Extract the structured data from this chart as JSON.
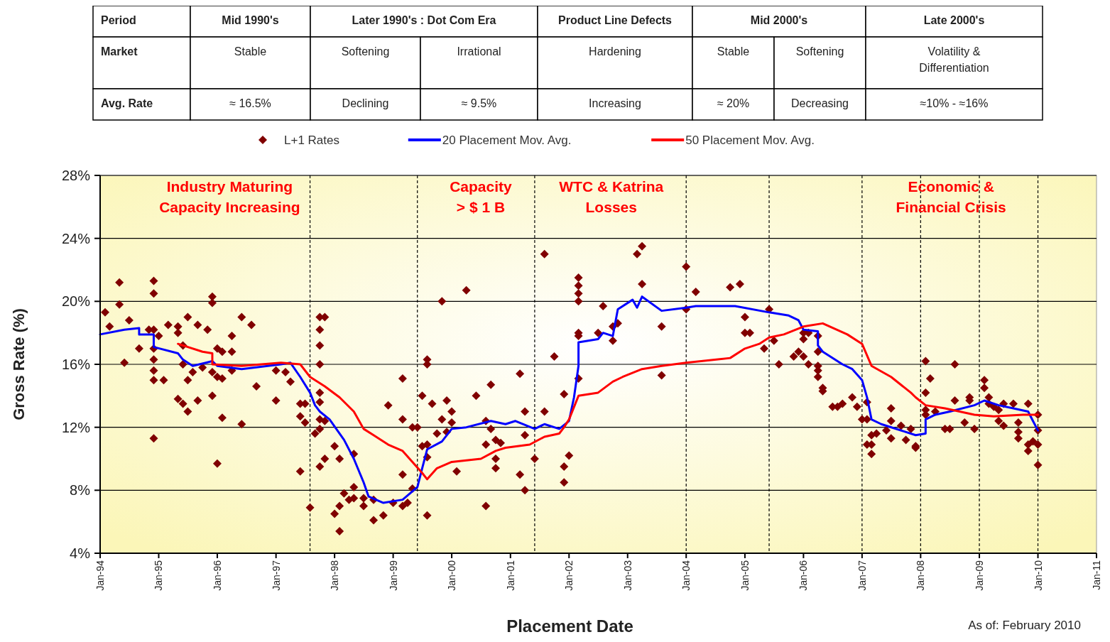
{
  "chart_data": {
    "type": "line",
    "xlabel": "Placement Date",
    "ylabel": "Gross Rate (%)",
    "xlim": [
      "1994-01",
      "2011-01"
    ],
    "ylim": [
      4,
      28
    ],
    "xticks": [
      {
        "value": "1994-01",
        "label": "Jan-94"
      },
      {
        "value": "1995-01",
        "label": "Jan-95"
      },
      {
        "value": "1996-01",
        "label": "Jan-96"
      },
      {
        "value": "1997-01",
        "label": "Jan-97"
      },
      {
        "value": "1998-01",
        "label": "Jan-98"
      },
      {
        "value": "1999-01",
        "label": "Jan-99"
      },
      {
        "value": "2000-01",
        "label": "Jan-00"
      },
      {
        "value": "2001-01",
        "label": "Jan-01"
      },
      {
        "value": "2002-01",
        "label": "Jan-02"
      },
      {
        "value": "2003-01",
        "label": "Jan-03"
      },
      {
        "value": "2004-01",
        "label": "Jan-04"
      },
      {
        "value": "2005-01",
        "label": "Jan-05"
      },
      {
        "value": "2006-01",
        "label": "Jan-06"
      },
      {
        "value": "2007-01",
        "label": "Jan-07"
      },
      {
        "value": "2008-01",
        "label": "Jan-08"
      },
      {
        "value": "2009-01",
        "label": "Jan-09"
      },
      {
        "value": "2010-01",
        "label": "Jan-10"
      },
      {
        "value": "2011-01",
        "label": "Jan-11"
      }
    ],
    "yticks": [
      {
        "value": 4,
        "label": "4%"
      },
      {
        "value": 8,
        "label": "8%"
      },
      {
        "value": 12,
        "label": "12%"
      },
      {
        "value": 16,
        "label": "16%"
      },
      {
        "value": 20,
        "label": "20%"
      },
      {
        "value": 24,
        "label": "24%"
      },
      {
        "value": 28,
        "label": "28%"
      }
    ],
    "grid": "y",
    "legend": "top",
    "series": [
      {
        "name": "L+1 Rates",
        "type": "scatter",
        "marker": "diamond",
        "color": "#800000",
        "x": [
          "1994-02",
          "1994-03",
          "1994-05",
          "1994-05",
          "1994-07",
          "1994-06",
          "1994-09",
          "1994-12",
          "1994-12",
          "1994-11",
          "1994-12",
          "1995-01",
          "1994-12",
          "1994-12",
          "1994-12",
          "1994-12",
          "1995-02",
          "1994-12",
          "1995-03",
          "1995-05",
          "1995-05",
          "1995-07",
          "1995-06",
          "1995-06",
          "1995-08",
          "1995-07",
          "1995-05",
          "1995-06",
          "1995-07",
          "1995-09",
          "1995-11",
          "1995-12",
          "1995-12",
          "1996-01",
          "1996-02",
          "1995-10",
          "1995-12",
          "1996-01",
          "1996-02",
          "1995-09",
          "1995-12",
          "1996-02",
          "1996-01",
          "1996-04",
          "1996-04",
          "1996-04",
          "1996-06",
          "1996-08",
          "1996-06",
          "1996-09",
          "1997-01",
          "1997-03",
          "1997-04",
          "1997-01",
          "1997-06",
          "1997-07",
          "1997-06",
          "1997-07",
          "1997-09",
          "1997-06",
          "1997-08",
          "1997-10",
          "1997-11",
          "1997-10",
          "1997-10",
          "1997-10",
          "1997-10",
          "1997-10",
          "1997-10",
          "1997-11",
          "1997-10",
          "1998-01",
          "1997-11",
          "1997-10",
          "1998-02",
          "1998-03",
          "1998-02",
          "1998-01",
          "1998-02",
          "1998-05",
          "1998-05",
          "1998-04",
          "1998-05",
          "1998-07",
          "1998-07",
          "1998-09",
          "1998-09",
          "1998-11",
          "1999-01",
          "1999-03",
          "1999-04",
          "1998-12",
          "1999-03",
          "1999-03",
          "1999-03",
          "1999-05",
          "1999-05",
          "1999-06",
          "1999-07",
          "1999-08",
          "1999-08",
          "1999-07",
          "1999-08",
          "1999-08",
          "1999-08",
          "1999-09",
          "1999-10",
          "1999-11",
          "1999-12",
          "2000-01",
          "1999-11",
          "2000-01",
          "1999-12",
          "2000-02",
          "2000-04",
          "2000-06",
          "2000-08",
          "2000-08",
          "2000-08",
          "2000-09",
          "2000-09",
          "2000-10",
          "2000-11",
          "2000-10",
          "2000-10",
          "2001-03",
          "2001-04",
          "2001-04",
          "2001-03",
          "2001-04",
          "2001-06",
          "2001-08",
          "2001-10",
          "2001-08",
          "2001-12",
          "2002-01",
          "2001-12",
          "2001-12",
          "2002-03",
          "2002-03",
          "2002-03",
          "2002-03",
          "2002-03",
          "2002-03",
          "2002-03",
          "2002-08",
          "2002-07",
          "2002-10",
          "2002-10",
          "2002-11",
          "2003-03",
          "2003-04",
          "2003-04",
          "2003-08",
          "2003-08",
          "2004-01",
          "2004-01",
          "2004-03",
          "2004-10",
          "2004-12",
          "2005-01",
          "2005-01",
          "2005-02",
          "2005-05",
          "2005-06",
          "2005-07",
          "2005-08",
          "2006-01",
          "2006-01",
          "2006-02",
          "2005-11",
          "2005-12",
          "2006-01",
          "2006-02",
          "2006-04",
          "2006-04",
          "2006-04",
          "2006-04",
          "2006-04",
          "2006-05",
          "2006-05",
          "2006-07",
          "2006-08",
          "2006-09",
          "2006-11",
          "2006-12",
          "2007-01",
          "2007-02",
          "2007-02",
          "2007-02",
          "2007-03",
          "2007-03",
          "2007-03",
          "2007-04",
          "2007-06",
          "2007-07",
          "2007-07",
          "2007-07",
          "2007-09",
          "2007-10",
          "2007-11",
          "2007-12",
          "2007-12",
          "2008-02",
          "2008-03",
          "2008-02",
          "2008-02",
          "2008-02",
          "2008-04",
          "2008-06",
          "2008-07",
          "2008-08",
          "2008-08",
          "2008-10",
          "2008-11",
          "2008-11",
          "2008-12",
          "2009-02",
          "2009-02",
          "2009-03",
          "2009-03",
          "2009-04",
          "2009-05",
          "2009-06",
          "2009-05",
          "2009-06",
          "2009-08",
          "2009-09",
          "2009-09",
          "2009-09",
          "2009-11",
          "2009-11",
          "2009-11",
          "2009-12",
          "2010-01",
          "2010-01",
          "2010-01",
          "2010-01"
        ],
        "values": [
          19.3,
          18.4,
          21.2,
          19.8,
          18.8,
          16.1,
          17.0,
          21.3,
          20.5,
          18.2,
          18.2,
          17.8,
          17.0,
          16.3,
          15.6,
          15.0,
          15.0,
          11.3,
          18.5,
          18.4,
          18.0,
          19.0,
          17.2,
          16.0,
          15.5,
          15.0,
          13.8,
          13.5,
          13.0,
          18.5,
          18.2,
          20.3,
          19.9,
          17.0,
          16.8,
          15.8,
          15.5,
          15.2,
          15.1,
          13.7,
          14.0,
          12.6,
          9.7,
          17.8,
          16.8,
          15.6,
          19.0,
          18.5,
          12.2,
          14.6,
          15.6,
          15.5,
          14.9,
          13.7,
          13.5,
          13.5,
          12.7,
          12.3,
          11.6,
          9.2,
          6.9,
          19.0,
          19.0,
          18.2,
          17.2,
          16.0,
          14.2,
          13.6,
          12.5,
          12.4,
          11.9,
          10.8,
          10.0,
          9.5,
          10.0,
          7.8,
          7.0,
          6.5,
          5.4,
          8.2,
          10.3,
          7.4,
          7.5,
          7.5,
          7.0,
          7.4,
          6.1,
          6.4,
          7.2,
          7.0,
          7.2,
          13.4,
          12.5,
          15.1,
          9.0,
          8.1,
          12.0,
          12.0,
          14.0,
          16.3,
          16.0,
          10.8,
          10.9,
          10.1,
          6.4,
          13.5,
          11.6,
          20.0,
          13.7,
          13.0,
          12.5,
          12.3,
          11.7,
          9.2,
          20.7,
          14.0,
          12.4,
          10.9,
          7.0,
          14.7,
          11.9,
          11.2,
          11.0,
          10.0,
          9.4,
          15.4,
          13.0,
          11.5,
          9.0,
          8.0,
          10.0,
          23.0,
          16.5,
          13.0,
          14.1,
          10.2,
          9.5,
          8.5,
          21.5,
          21.0,
          20.5,
          20.0,
          18.0,
          17.8,
          15.1,
          19.7,
          18.0,
          17.5,
          18.4,
          18.6,
          23.0,
          23.5,
          21.1,
          18.4,
          15.3,
          22.2,
          19.5,
          20.6,
          20.9,
          21.1,
          19.0,
          18.0,
          18.0,
          17.0,
          19.5,
          17.5,
          16.0,
          18.0,
          17.6,
          18.0,
          16.5,
          16.8,
          16.5,
          16.0,
          17.8,
          16.8,
          15.9,
          15.6,
          15.2,
          14.5,
          14.3,
          13.3,
          13.3,
          13.5,
          13.9,
          13.3,
          12.5,
          13.6,
          12.5,
          10.9,
          10.9,
          10.3,
          11.5,
          11.6,
          11.8,
          13.2,
          12.4,
          11.3,
          12.1,
          11.2,
          11.9,
          10.8,
          10.7,
          16.2,
          15.1,
          14.2,
          13.1,
          12.8,
          13.0,
          11.9,
          11.9,
          16.0,
          13.7,
          12.3,
          13.9,
          13.7,
          11.9,
          15.0,
          14.5,
          13.9,
          13.5,
          13.3,
          13.1,
          13.5,
          12.4,
          12.1,
          13.5,
          12.3,
          11.7,
          11.3,
          13.5,
          10.9,
          10.5,
          11.1,
          12.8,
          10.9,
          11.8,
          9.6
        ]
      },
      {
        "name": "20 Placement Mov. Avg.",
        "color": "#0000ff",
        "x": [
          "1994-01",
          "1994-06",
          "1994-09",
          "1994-09",
          "1994-12",
          "1994-12",
          "1995-05",
          "1995-06",
          "1995-08",
          "1995-12",
          "1996-01",
          "1996-06",
          "1997-02",
          "1997-04",
          "1997-06",
          "1997-08",
          "1997-09",
          "1997-10",
          "1997-12",
          "1998-03",
          "1998-05",
          "1998-07",
          "1998-08",
          "1998-11",
          "1999-03",
          "1999-06",
          "1999-07",
          "1999-08",
          "1999-11",
          "2000-01",
          "2000-04",
          "2000-09",
          "2000-12",
          "2001-02",
          "2001-06",
          "2001-08",
          "2001-11",
          "2002-01",
          "2002-02",
          "2002-03",
          "2002-03",
          "2002-07",
          "2002-08",
          "2002-10",
          "2002-11",
          "2003-02",
          "2003-03",
          "2003-04",
          "2003-08",
          "2004-01",
          "2004-03",
          "2004-11",
          "2005-06",
          "2005-10",
          "2005-12",
          "2006-01",
          "2006-04",
          "2006-04",
          "2006-05",
          "2006-09",
          "2006-11",
          "2007-01",
          "2007-02",
          "2007-03",
          "2007-05",
          "2007-12",
          "2008-02",
          "2008-02",
          "2008-04",
          "2008-07",
          "2008-12",
          "2009-02",
          "2009-05",
          "2009-08",
          "2009-11",
          "2009-12",
          "2010-01"
        ],
        "values": [
          17.9,
          18.2,
          18.3,
          17.9,
          17.9,
          17.1,
          16.7,
          16.3,
          15.9,
          16.2,
          15.9,
          15.7,
          16.0,
          16.1,
          15.2,
          14.2,
          13.4,
          13.0,
          12.5,
          11.2,
          10.0,
          8.5,
          7.6,
          7.2,
          7.4,
          8.2,
          9.4,
          10.6,
          11.1,
          11.9,
          12.0,
          12.4,
          12.2,
          12.4,
          11.9,
          12.2,
          11.9,
          12.4,
          13.9,
          15.9,
          17.4,
          17.6,
          18.0,
          17.8,
          19.5,
          20.1,
          19.6,
          20.3,
          19.4,
          19.6,
          19.7,
          19.7,
          19.3,
          19.1,
          18.8,
          18.2,
          18.1,
          17.2,
          16.8,
          16.0,
          15.7,
          15.0,
          13.9,
          12.5,
          12.2,
          11.5,
          11.6,
          12.5,
          12.8,
          13.0,
          13.4,
          13.7,
          13.4,
          13.2,
          13.0,
          12.4,
          11.8
        ]
      },
      {
        "name": "50 Placement Mov. Avg.",
        "color": "#ff0000",
        "x": [
          "1995-05",
          "1995-10",
          "1995-12",
          "1995-12",
          "1996-06",
          "1997-02",
          "1997-06",
          "1997-08",
          "1997-11",
          "1998-02",
          "1998-05",
          "1998-07",
          "1998-09",
          "1998-12",
          "1999-03",
          "1999-05",
          "1999-07",
          "1999-08",
          "1999-10",
          "2000-01",
          "2000-07",
          "2000-10",
          "2000-12",
          "2001-05",
          "2001-08",
          "2001-11",
          "2001-12",
          "2002-01",
          "2002-03",
          "2002-07",
          "2002-10",
          "2002-12",
          "2003-04",
          "2003-08",
          "2004-01",
          "2004-10",
          "2005-01",
          "2005-04",
          "2005-06",
          "2005-09",
          "2006-01",
          "2006-05",
          "2006-10",
          "2007-01",
          "2007-03",
          "2007-07",
          "2007-11",
          "2007-12",
          "2008-02",
          "2008-06",
          "2008-12",
          "2009-04",
          "2009-10",
          "2010-01"
        ],
        "values": [
          17.3,
          16.8,
          16.7,
          16.0,
          15.9,
          16.1,
          16.0,
          15.2,
          14.6,
          13.9,
          13.0,
          11.9,
          11.5,
          10.9,
          10.5,
          9.8,
          9.1,
          8.7,
          9.4,
          9.8,
          10.0,
          10.5,
          10.7,
          10.9,
          11.4,
          11.6,
          12.0,
          12.5,
          14.0,
          14.2,
          14.9,
          15.2,
          15.7,
          15.9,
          16.1,
          16.4,
          17.0,
          17.3,
          17.7,
          17.9,
          18.4,
          18.6,
          17.9,
          17.3,
          15.9,
          15.2,
          14.2,
          13.9,
          13.4,
          13.2,
          12.8,
          12.7,
          12.8,
          12.8
        ]
      }
    ],
    "ref_lines": [
      {
        "axis": "x",
        "value": "1997-08",
        "color": "#000000",
        "line_style": "dashed"
      },
      {
        "axis": "x",
        "value": "1999-06",
        "color": "#000000",
        "line_style": "dashed"
      },
      {
        "axis": "x",
        "value": "2001-06",
        "color": "#000000",
        "line_style": "dashed"
      },
      {
        "axis": "x",
        "value": "2004-01",
        "color": "#000000",
        "line_style": "dashed"
      },
      {
        "axis": "x",
        "value": "2005-06",
        "color": "#000000",
        "line_style": "dashed"
      },
      {
        "axis": "x",
        "value": "2007-01",
        "color": "#000000",
        "line_style": "dashed"
      },
      {
        "axis": "x",
        "value": "2008-01",
        "color": "#000000",
        "line_style": "dashed"
      },
      {
        "axis": "x",
        "value": "2009-01",
        "color": "#000000",
        "line_style": "dashed"
      },
      {
        "axis": "x",
        "value": "2010-01",
        "color": "#000000",
        "line_style": "dashed"
      }
    ],
    "annotations": [
      "Period",
      "Mid 1990's",
      "Later 1990's : Dot Com Era",
      "Product Line Defects",
      "Mid 2000's",
      "Late 2000's",
      "Market",
      "Stable",
      "Softening",
      "Irrational",
      "Hardening",
      "Stable",
      "Softening",
      "Volatility &\nDifferentiation",
      "Avg. Rate",
      "≈ 16.5%",
      "Declining",
      "≈ 9.5%",
      "Increasing",
      "≈ 20%",
      "Decreasing",
      "≈10% - ≈16%",
      "Industry Maturing\nCapacity Increasing",
      "Capacity\n> $ 1 B",
      "WTC & Katrina\nLosses",
      "Economic &\nFinancial Crisis",
      "As of: February 2010"
    ]
  }
}
